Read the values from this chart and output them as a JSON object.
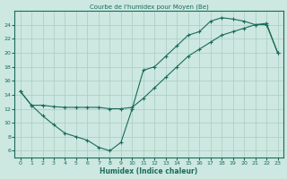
{
  "title": "Courbe de l'humidex pour Moyen (Be)",
  "xlabel": "Humidex (Indice chaleur)",
  "background_color": "#cce8e0",
  "grid_color": "#aaccbf",
  "line_color": "#1a6b5a",
  "xlim": [
    -0.5,
    23.5
  ],
  "ylim": [
    5.0,
    26.0
  ],
  "yticks": [
    6,
    8,
    10,
    12,
    14,
    16,
    18,
    20,
    22,
    24
  ],
  "xticks": [
    0,
    1,
    2,
    3,
    4,
    5,
    6,
    7,
    8,
    9,
    10,
    11,
    12,
    13,
    14,
    15,
    16,
    17,
    18,
    19,
    20,
    21,
    22,
    23
  ],
  "line1_x": [
    0,
    1,
    2,
    3,
    4,
    5,
    6,
    7,
    8,
    9,
    10,
    11,
    12,
    13,
    14,
    15,
    16,
    17,
    18,
    19,
    20,
    21,
    22,
    23
  ],
  "line1_y": [
    14.5,
    12.5,
    11.0,
    9.7,
    8.5,
    8.0,
    7.5,
    6.5,
    6.0,
    7.2,
    12.0,
    17.5,
    18.0,
    19.5,
    21.0,
    22.5,
    23.0,
    24.5,
    25.0,
    24.8,
    24.5,
    24.0,
    24.0,
    20.0
  ],
  "line2_x": [
    0,
    1,
    2,
    3,
    4,
    5,
    6,
    7,
    8,
    9,
    10,
    11,
    12,
    13,
    14,
    15,
    16,
    17,
    18,
    19,
    20,
    21,
    22,
    23
  ],
  "line2_y": [
    14.5,
    12.5,
    12.5,
    12.3,
    12.2,
    12.2,
    12.2,
    12.2,
    12.0,
    12.0,
    12.2,
    13.5,
    15.0,
    16.5,
    18.0,
    19.5,
    20.5,
    21.5,
    22.5,
    23.0,
    23.5,
    24.0,
    24.2,
    20.0
  ]
}
